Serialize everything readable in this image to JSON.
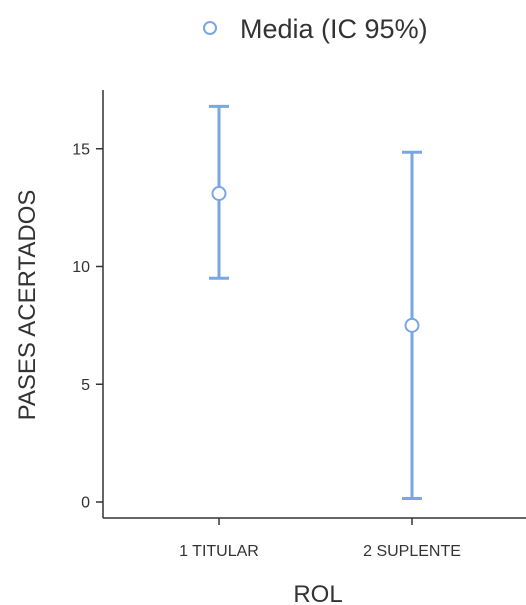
{
  "chart_data": {
    "type": "errorbar",
    "xlabel": "ROL",
    "ylabel": "PASES ACERTADOS",
    "ylim": [
      0,
      17.5
    ],
    "yticks": [
      0,
      5,
      10,
      15
    ],
    "categories": [
      "1 TITULAR",
      "2 SUPLENTE"
    ],
    "series": [
      {
        "name": "Media (IC 95%)",
        "values": [
          13.1,
          7.5
        ],
        "lower": [
          9.5,
          0.15
        ],
        "upper": [
          16.8,
          14.85
        ]
      }
    ],
    "legend_position": "top",
    "grid": false,
    "colors": {
      "series": "#7aa6e6",
      "axis": "#333333"
    }
  }
}
